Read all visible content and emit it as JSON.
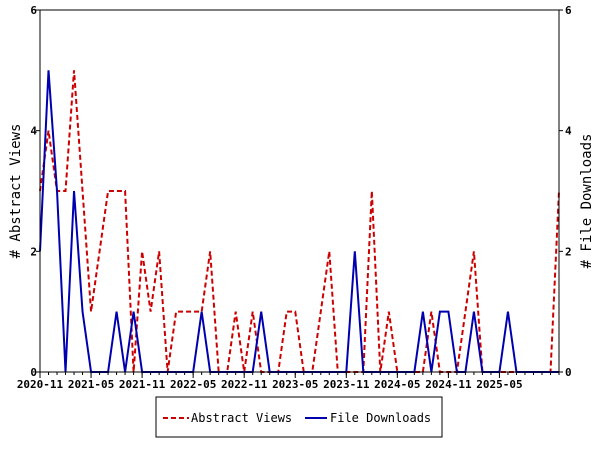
{
  "chart_data": {
    "type": "line",
    "ylabel": "# Abstract Views",
    "y2label": "# File Downloads",
    "ylim": [
      0,
      6
    ],
    "y2lim": [
      0,
      6
    ],
    "y_ticks": [
      "0",
      "2",
      "4",
      "6"
    ],
    "y2_ticks": [
      "0",
      "2",
      "4",
      "6"
    ],
    "x_tick_labels": [
      "2020-11",
      "2021-05",
      "2021-11",
      "2022-05",
      "2022-11",
      "2023-05",
      "2023-11",
      "2024-05",
      "2024-11",
      "2025-05"
    ],
    "x_start": "2020-11",
    "x_end": "2025-12",
    "grid": false,
    "legend_position": "bottom",
    "series": [
      {
        "name": "Abstract Views",
        "axis": "left",
        "color": "#cc0000",
        "style": "dashed",
        "values": [
          3,
          4,
          3,
          3,
          5,
          3,
          1,
          2,
          3,
          3,
          3,
          0,
          2,
          1,
          2,
          0,
          1,
          1,
          1,
          1,
          2,
          0,
          0,
          1,
          0,
          1,
          0,
          0,
          0,
          1,
          1,
          0,
          0,
          1,
          2,
          0,
          0,
          0,
          0,
          3,
          0,
          1,
          0,
          0,
          0,
          0,
          1,
          0,
          0,
          0,
          1,
          2,
          0,
          0,
          0,
          0,
          0,
          0,
          0,
          0,
          0,
          3
        ]
      },
      {
        "name": "File Downloads",
        "axis": "right",
        "color": "#0000b0",
        "style": "solid",
        "values": [
          2,
          5,
          3,
          0,
          3,
          1,
          0,
          0,
          0,
          1,
          0,
          1,
          0,
          0,
          0,
          0,
          0,
          0,
          0,
          1,
          0,
          0,
          0,
          0,
          0,
          0,
          1,
          0,
          0,
          0,
          0,
          0,
          0,
          0,
          0,
          0,
          0,
          2,
          0,
          0,
          0,
          0,
          0,
          0,
          0,
          1,
          0,
          1,
          1,
          0,
          0,
          1,
          0,
          0,
          0,
          1,
          0,
          0,
          0,
          0,
          0,
          0
        ]
      }
    ]
  }
}
